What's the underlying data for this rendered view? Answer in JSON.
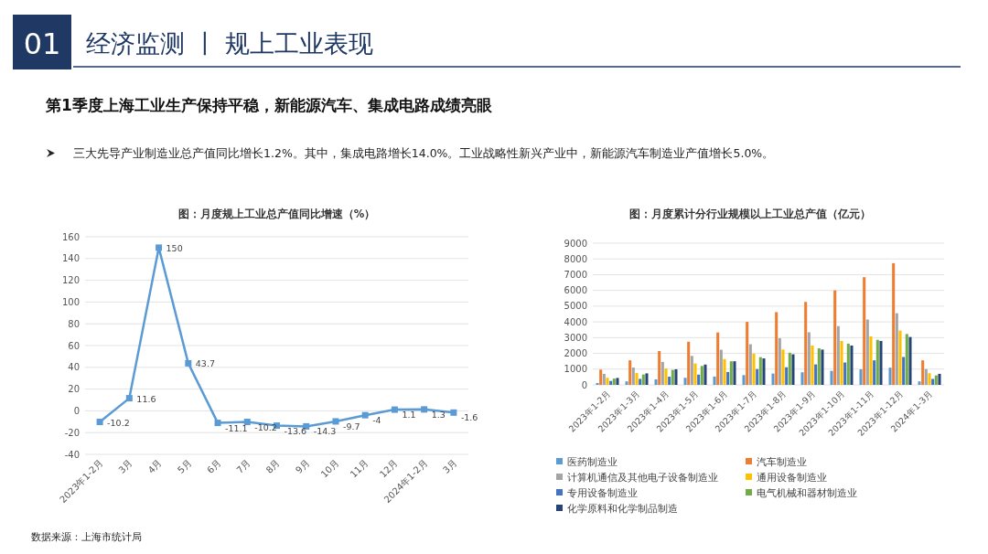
{
  "chart_data": [
    {
      "type": "other",
      "title": "第1季度上海工业生产保持平稳，新能源汽车、集成电路成绩亮眼",
      "subtitle": "三大先导产业制造业总产值同比增长1.2%。其中，集成电路增长14.0%。工业战略性新兴产业中，新能源汽车制造业产值增长5.0%。",
      "annotations": [
        "01",
        "经济监测 丨 规上工业表现"
      ]
    },
    {
      "type": "line",
      "title": "图：月度规上工业总产值同比增速（%）",
      "categories": [
        "2023年1-2月",
        "3月",
        "4月",
        "5月",
        "6月",
        "7月",
        "8月",
        "9月",
        "10月",
        "11月",
        "12月",
        "2024年1-2月",
        "3月"
      ],
      "values": [
        -10.2,
        11.6,
        150,
        43.7,
        -11.1,
        -10.2,
        -13.6,
        -14.3,
        -9.7,
        -4,
        1.1,
        1.3,
        -1.6
      ],
      "color": "#5b9bd5",
      "ylim": [
        -40,
        160
      ],
      "yticks": [
        -40,
        -20,
        0,
        20,
        40,
        60,
        80,
        100,
        120,
        140,
        160
      ],
      "grid": "y",
      "marker": "square",
      "data_labels": true,
      "annotations": [
        "数据来源：上海市统计局"
      ]
    },
    {
      "type": "bar",
      "title": "图：月度累计分行业规模以上工业总产值（亿元）",
      "categories": [
        "2023年1-2月",
        "2023年1-3月",
        "2023年1-4月",
        "2023年1-5月",
        "2023年1-6月",
        "2023年1-7月",
        "2023年1-8月",
        "2023年1-9月",
        "2023年1-10月",
        "2023年1-11月",
        "2023年1-12月",
        "2024年1-3月"
      ],
      "series": [
        {
          "name": "医药制造业",
          "color": "#5b9bd5",
          "values": [
            120,
            220,
            350,
            450,
            530,
            620,
            720,
            800,
            890,
            990,
            1090,
            220
          ]
        },
        {
          "name": "汽车制造业",
          "color": "#ed7d31",
          "values": [
            970,
            1560,
            2150,
            2740,
            3330,
            4000,
            4620,
            5270,
            6000,
            6840,
            7730,
            1560
          ]
        },
        {
          "name": "计算机通信及其他电子设备制造业",
          "color": "#a5a5a5",
          "values": [
            700,
            1100,
            1460,
            1840,
            2230,
            2580,
            2960,
            3340,
            3730,
            4150,
            4550,
            1000
          ]
        },
        {
          "name": "通用设备制造业",
          "color": "#ffc000",
          "values": [
            450,
            750,
            1040,
            1360,
            1640,
            1980,
            2240,
            2500,
            2790,
            3080,
            3450,
            740
          ]
        },
        {
          "name": "专用设备制造业",
          "color": "#4472c4",
          "values": [
            250,
            380,
            520,
            650,
            820,
            1000,
            1120,
            1300,
            1420,
            1560,
            1770,
            380
          ]
        },
        {
          "name": "电气机械和器材制造业",
          "color": "#70ad47",
          "values": [
            400,
            660,
            950,
            1200,
            1500,
            1760,
            2040,
            2320,
            2620,
            2860,
            3230,
            600
          ]
        },
        {
          "name": "化学原料和化学制品制造",
          "color": "#264478",
          "values": [
            440,
            730,
            990,
            1290,
            1500,
            1680,
            1940,
            2240,
            2500,
            2790,
            3040,
            700
          ]
        }
      ],
      "ylim": [
        0,
        9000
      ],
      "yticks": [
        0,
        1000,
        2000,
        3000,
        4000,
        5000,
        6000,
        7000,
        8000,
        9000
      ],
      "grid": "y",
      "legend": "bottom"
    }
  ]
}
